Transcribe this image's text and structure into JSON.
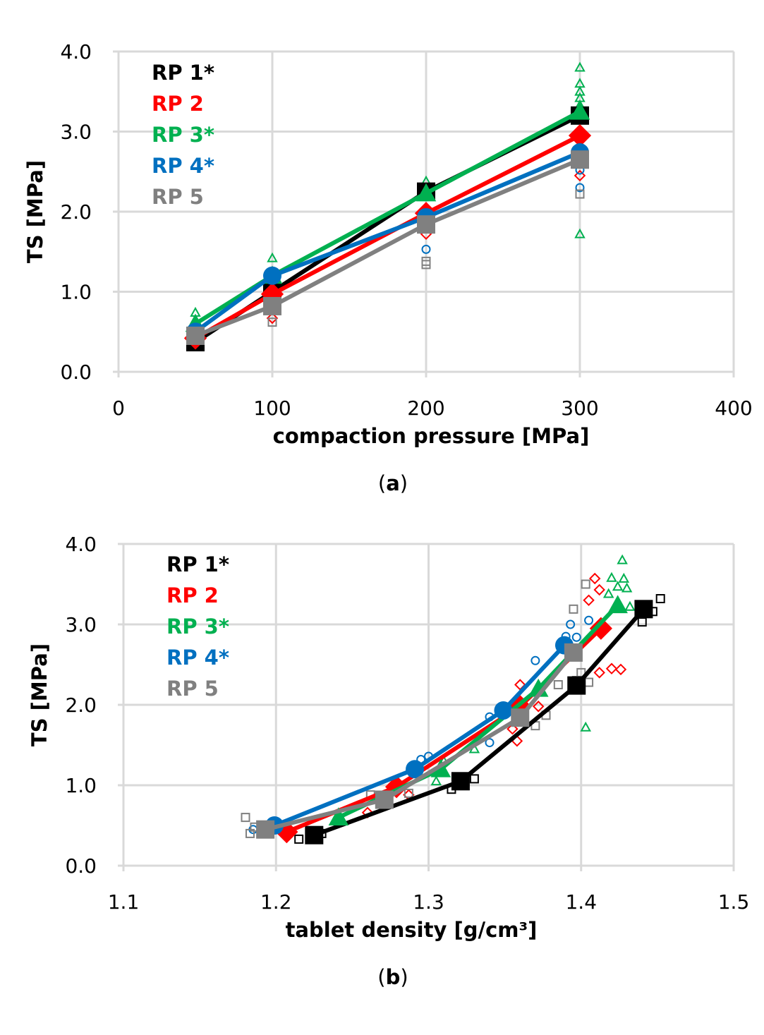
{
  "colors": {
    "RP 1*": "#000000",
    "RP 2": "#ff0000",
    "RP 3*": "#00b050",
    "RP 4*": "#0070c0",
    "RP 5": "#808080",
    "grid": "#d9d9d9"
  },
  "chart_data": [
    {
      "type": "line",
      "caption_letter": "a",
      "xlabel": "compaction pressure [MPa]",
      "ylabel": "TS [MPa]",
      "xlim": [
        0,
        400
      ],
      "ylim": [
        0,
        4
      ],
      "xticks": [
        "0",
        "100",
        "200",
        "300",
        "400"
      ],
      "yticks": [
        "0.0",
        "1.0",
        "2.0",
        "3.0",
        "4.0"
      ],
      "grid": true,
      "legend_position": "top-left",
      "series": [
        {
          "name": "RP 1*",
          "marker": "square",
          "x": [
            50,
            100,
            200,
            300
          ],
          "y": [
            0.37,
            1.0,
            2.25,
            3.2
          ],
          "points": []
        },
        {
          "name": "RP 2",
          "marker": "diamond",
          "x": [
            50,
            100,
            200,
            300
          ],
          "y": [
            0.42,
            0.97,
            1.98,
            2.95
          ],
          "points": [
            [
              100,
              0.67
            ],
            [
              200,
              1.72
            ],
            [
              300,
              2.45
            ]
          ]
        },
        {
          "name": "RP 3*",
          "marker": "triangle",
          "x": [
            50,
            100,
            200,
            300
          ],
          "y": [
            0.6,
            1.2,
            2.23,
            3.25
          ],
          "points": [
            [
              50,
              0.74
            ],
            [
              100,
              1.42
            ],
            [
              200,
              2.38
            ],
            [
              300,
              3.8
            ],
            [
              300,
              3.6
            ],
            [
              300,
              3.5
            ],
            [
              300,
              3.42
            ],
            [
              300,
              3.33
            ],
            [
              300,
              1.72
            ]
          ]
        },
        {
          "name": "RP 4*",
          "marker": "circle",
          "x": [
            50,
            100,
            200,
            300
          ],
          "y": [
            0.5,
            1.2,
            1.93,
            2.74
          ],
          "points": [
            [
              200,
              1.53
            ],
            [
              300,
              2.52
            ],
            [
              300,
              2.3
            ]
          ]
        },
        {
          "name": "RP 5",
          "marker": "square",
          "x": [
            50,
            100,
            200,
            300
          ],
          "y": [
            0.45,
            0.82,
            1.84,
            2.65
          ],
          "points": [
            [
              100,
              0.62
            ],
            [
              200,
              1.38
            ],
            [
              200,
              1.34
            ],
            [
              300,
              2.22
            ]
          ]
        }
      ]
    },
    {
      "type": "line",
      "caption_letter": "b",
      "xlabel": "tablet density [g/cm³]",
      "ylabel": "TS [MPa]",
      "xlim": [
        1.1,
        1.5
      ],
      "ylim": [
        0,
        4
      ],
      "xticks": [
        "1.1",
        "1.2",
        "1.3",
        "1.4",
        "1.5"
      ],
      "yticks": [
        "0.0",
        "1.0",
        "2.0",
        "3.0",
        "4.0"
      ],
      "grid": true,
      "legend_position": "top-left",
      "series": [
        {
          "name": "RP 1*",
          "marker": "square",
          "x": [
            1.225,
            1.321,
            1.397,
            1.441
          ],
          "y": [
            0.38,
            1.05,
            2.24,
            3.19
          ],
          "points": [
            [
              1.452,
              3.32
            ],
            [
              1.447,
              3.16
            ],
            [
              1.44,
              3.03
            ],
            [
              1.397,
              2.3
            ],
            [
              1.322,
              1.1
            ],
            [
              1.33,
              1.08
            ],
            [
              1.315,
              0.95
            ],
            [
              1.215,
              0.33
            ],
            [
              1.23,
              0.4
            ]
          ]
        },
        {
          "name": "RP 2",
          "marker": "diamond",
          "x": [
            1.207,
            1.279,
            1.36,
            1.413
          ],
          "y": [
            0.42,
            0.98,
            1.98,
            2.95
          ],
          "points": [
            [
              1.409,
              3.57
            ],
            [
              1.412,
              3.43
            ],
            [
              1.405,
              3.3
            ],
            [
              1.42,
              2.45
            ],
            [
              1.426,
              2.44
            ],
            [
              1.412,
              2.4
            ],
            [
              1.36,
              2.25
            ],
            [
              1.372,
              1.98
            ],
            [
              1.355,
              1.7
            ],
            [
              1.358,
              1.55
            ],
            [
              1.287,
              0.88
            ],
            [
              1.26,
              0.66
            ]
          ]
        },
        {
          "name": "RP 3*",
          "marker": "triangle",
          "x": [
            1.241,
            1.308,
            1.372,
            1.424
          ],
          "y": [
            0.6,
            1.2,
            2.2,
            3.24
          ],
          "points": [
            [
              1.427,
              3.8
            ],
            [
              1.42,
              3.58
            ],
            [
              1.428,
              3.57
            ],
            [
              1.424,
              3.47
            ],
            [
              1.43,
              3.45
            ],
            [
              1.418,
              3.38
            ],
            [
              1.432,
              3.22
            ],
            [
              1.403,
              1.72
            ],
            [
              1.305,
              1.05
            ],
            [
              1.31,
              1.3
            ],
            [
              1.33,
              1.45
            ]
          ]
        },
        {
          "name": "RP 4*",
          "marker": "circle",
          "x": [
            1.199,
            1.291,
            1.349,
            1.389
          ],
          "y": [
            0.5,
            1.2,
            1.93,
            2.74
          ],
          "points": [
            [
              1.405,
              3.05
            ],
            [
              1.393,
              3.0
            ],
            [
              1.39,
              2.85
            ],
            [
              1.397,
              2.84
            ],
            [
              1.37,
              2.55
            ],
            [
              1.34,
              1.85
            ],
            [
              1.34,
              1.53
            ],
            [
              1.295,
              1.32
            ],
            [
              1.3,
              1.36
            ],
            [
              1.185,
              0.45
            ]
          ]
        },
        {
          "name": "RP 5",
          "marker": "square",
          "x": [
            1.193,
            1.271,
            1.36,
            1.395
          ],
          "y": [
            0.45,
            0.82,
            1.84,
            2.65
          ],
          "points": [
            [
              1.395,
              3.19
            ],
            [
              1.403,
              3.5
            ],
            [
              1.4,
              2.4
            ],
            [
              1.405,
              2.28
            ],
            [
              1.385,
              2.25
            ],
            [
              1.377,
              1.87
            ],
            [
              1.37,
              1.74
            ],
            [
              1.18,
              0.6
            ],
            [
              1.183,
              0.4
            ],
            [
              1.186,
              0.48
            ],
            [
              1.262,
              0.88
            ],
            [
              1.287,
              0.9
            ]
          ]
        }
      ]
    }
  ]
}
